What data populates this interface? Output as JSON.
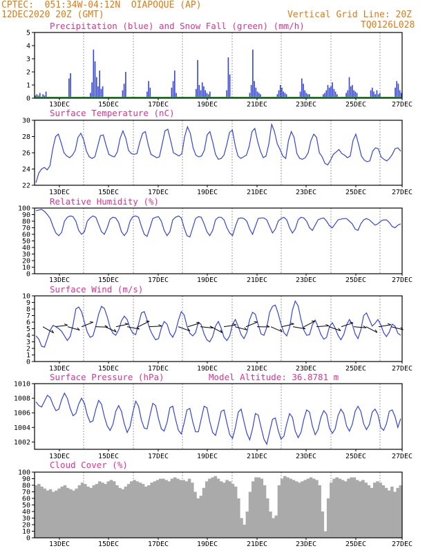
{
  "header": {
    "line1_left": "CPTEC:  051:34W-04:12N  OIAPOQUE (AP)",
    "line2_left": "12DEC2020 20Z (GMT)",
    "line2_right": "Vertical Grid Line: 20Z",
    "line3_right": "TQ0126L028"
  },
  "colors": {
    "title": "#e0308f",
    "header": "#e07a10",
    "line": "#3344dd",
    "snow": "#22aa22",
    "cloud": "#aaaaaa"
  },
  "x_ticks": [
    "13DEC",
    "15DEC",
    "17DEC",
    "19DEC",
    "21DEC",
    "23DEC",
    "25DEC",
    "27DEC"
  ],
  "chart_data": [
    {
      "type": "bar",
      "title": "Precipitation (blue) and Snow Fall (green) (mm/h)",
      "xlabel": "",
      "ylabel": "",
      "ylim": [
        0,
        5
      ],
      "yticks": [
        0,
        1,
        2,
        3,
        4,
        5
      ],
      "series": [
        {
          "name": "Precipitation",
          "values": [
            0.2,
            0.3,
            0.2,
            0.4,
            0.1,
            0.3,
            0.2,
            0.5,
            0,
            0,
            0,
            0,
            0,
            0,
            0,
            0,
            0,
            0,
            0,
            0,
            0,
            0,
            1.5,
            1.9,
            0,
            0,
            0,
            0,
            0,
            0,
            0,
            0,
            0,
            0,
            0,
            0,
            0.4,
            1.2,
            3.7,
            2.8,
            1.6,
            0.9,
            2.1,
            0.7,
            0.9,
            0,
            0,
            0,
            0,
            0,
            0,
            0,
            0,
            0,
            0,
            0,
            0,
            0.6,
            1.1,
            2.0,
            0,
            0,
            0,
            0,
            0,
            0,
            0,
            0,
            0,
            0,
            0,
            0,
            0,
            0.5,
            1.3,
            0.8,
            0,
            0,
            0,
            0,
            0,
            0,
            0,
            0,
            0,
            0,
            0,
            0,
            0,
            0.8,
            1.3,
            2.1,
            0.4,
            0,
            0,
            0,
            0,
            0,
            0,
            0,
            0,
            0,
            0,
            0,
            0,
            0.7,
            2.9,
            1.0,
            0.6,
            1.2,
            0.9,
            0.6,
            0.4,
            0.3,
            0.5,
            0,
            0,
            0,
            0,
            0,
            0,
            0,
            0,
            0,
            0,
            0.6,
            3.1,
            1.8,
            0,
            0,
            0,
            0,
            0,
            0,
            0,
            0,
            0,
            0,
            0,
            0,
            0.4,
            1.0,
            3.7,
            1.3,
            0.8,
            0.5,
            0.4,
            0.3,
            0,
            0,
            0,
            0,
            0,
            0,
            0,
            0,
            0,
            0,
            0.3,
            0.6,
            1.0,
            0.8,
            0.5,
            0.4,
            0.3,
            0,
            0,
            0,
            0,
            0,
            0,
            0,
            0,
            0.5,
            1.5,
            1.1,
            0.6,
            0.4,
            0.3,
            0.3,
            0,
            0,
            0,
            0,
            0,
            0,
            0,
            0,
            0.3,
            0.4,
            0.6,
            1.0,
            0.8,
            0.9,
            1.2,
            0.7,
            0.5,
            0.3,
            0,
            0,
            0,
            0,
            0,
            0.4,
            0.6,
            1.6,
            0.9,
            1.0,
            0.6,
            0.5,
            0.4,
            0,
            0,
            0,
            0,
            0,
            0,
            0,
            0,
            0.6,
            0.8,
            0.5,
            0.3,
            0.6,
            0.3,
            0.4,
            0,
            0,
            0,
            0,
            0,
            0,
            0,
            0,
            0,
            0.8,
            1.3,
            1.1,
            0.6,
            0.4
          ]
        },
        {
          "name": "Snow Fall",
          "values": [
            0
          ]
        }
      ]
    },
    {
      "type": "line",
      "title": "Surface Temperature (nC)",
      "xlabel": "",
      "ylabel": "",
      "ylim": [
        22,
        30
      ],
      "yticks": [
        22,
        24,
        26,
        28,
        30
      ],
      "series": [
        {
          "name": "",
          "values": [
            22.3,
            23.5,
            24.0,
            24.2,
            23.9,
            24.4,
            26.5,
            28.0,
            28.3,
            27.2,
            26.0,
            25.6,
            25.4,
            25.7,
            26.3,
            27.9,
            28.4,
            27.6,
            26.2,
            25.5,
            25.3,
            25.5,
            26.8,
            28.1,
            28.2,
            26.9,
            25.8,
            25.6,
            25.5,
            26.1,
            27.8,
            28.7,
            27.8,
            26.3,
            25.9,
            25.8,
            25.9,
            27.3,
            28.4,
            28.6,
            27.0,
            25.8,
            25.6,
            25.4,
            25.5,
            27.1,
            28.7,
            28.9,
            27.5,
            26.0,
            25.8,
            25.6,
            25.9,
            28.0,
            29.2,
            28.4,
            26.6,
            25.7,
            25.5,
            25.6,
            26.3,
            28.2,
            28.6,
            27.3,
            25.8,
            25.2,
            25.3,
            25.7,
            27.0,
            28.5,
            28.8,
            26.9,
            25.6,
            25.3,
            25.5,
            25.7,
            26.8,
            28.6,
            29.0,
            27.4,
            26.2,
            25.4,
            25.6,
            27.1,
            29.5,
            28.6,
            27.1,
            26.4,
            25.6,
            25.3,
            27.5,
            28.6,
            27.9,
            25.9,
            25.3,
            25.2,
            25.4,
            26.0,
            27.5,
            28.3,
            27.9,
            26.0,
            25.5,
            24.7,
            24.5,
            25.1,
            25.8,
            26.1,
            26.4,
            25.9,
            25.7,
            25.4,
            25.6,
            27.5,
            28.3,
            27.0,
            25.6,
            25.1,
            24.9,
            25.0,
            26.2,
            26.6,
            26.5,
            25.5,
            25.2,
            25.0,
            25.3,
            25.8,
            26.5,
            26.6,
            26.2
          ]
        }
      ]
    },
    {
      "type": "line",
      "title": "Relative Humidity (%)",
      "xlabel": "",
      "ylabel": "",
      "ylim": [
        0,
        100
      ],
      "yticks": [
        0,
        10,
        20,
        30,
        40,
        50,
        60,
        70,
        80,
        90,
        100
      ],
      "series": [
        {
          "name": "",
          "values": [
            96,
            97,
            98,
            95,
            90,
            84,
            72,
            62,
            58,
            63,
            80,
            86,
            88,
            87,
            80,
            66,
            60,
            64,
            80,
            85,
            88,
            86,
            75,
            64,
            60,
            70,
            83,
            86,
            85,
            78,
            64,
            58,
            64,
            80,
            87,
            88,
            86,
            72,
            60,
            57,
            70,
            84,
            86,
            87,
            80,
            66,
            58,
            64,
            82,
            86,
            88,
            85,
            70,
            58,
            56,
            70,
            84,
            87,
            86,
            76,
            64,
            58,
            66,
            82,
            86,
            86,
            82,
            70,
            62,
            58,
            72,
            84,
            85,
            84,
            80,
            68,
            60,
            72,
            84,
            85,
            85,
            82,
            72,
            62,
            68,
            80,
            84,
            86,
            82,
            70,
            62,
            68,
            82,
            86,
            85,
            80,
            70,
            66,
            74,
            82,
            84,
            85,
            80,
            73,
            70,
            76,
            82,
            83,
            84,
            84,
            80,
            76,
            68,
            66,
            76,
            82,
            84,
            82,
            78,
            74,
            76,
            80,
            82,
            82,
            78,
            72,
            70,
            74,
            76
          ]
        }
      ]
    },
    {
      "type": "line",
      "title": "Surface Wind (m/s)",
      "xlabel": "",
      "ylabel": "",
      "ylim": [
        0,
        10
      ],
      "yticks": [
        0,
        1,
        2,
        3,
        4,
        5,
        6,
        7,
        8,
        9,
        10
      ],
      "series": [
        {
          "name": "",
          "values": [
            3.9,
            3.4,
            2.3,
            2.2,
            3.5,
            4.8,
            5.5,
            5.3,
            5.0,
            4.6,
            3.9,
            3.2,
            3.8,
            5.6,
            8.0,
            8.3,
            7.6,
            6.0,
            4.5,
            3.7,
            3.9,
            5.4,
            7.2,
            8.4,
            8.1,
            6.8,
            5.2,
            4.3,
            4.0,
            4.8,
            6.2,
            6.9,
            6.4,
            5.1,
            4.3,
            4.1,
            5.7,
            7.4,
            7.6,
            6.3,
            4.9,
            4.0,
            3.3,
            3.5,
            5.1,
            6.1,
            5.7,
            4.3,
            3.7,
            4.6,
            6.3,
            7.6,
            7.1,
            5.4,
            4.3,
            3.9,
            4.4,
            6.0,
            5.6,
            4.2,
            3.3,
            3.0,
            3.8,
            5.4,
            6.1,
            5.1,
            3.7,
            3.2,
            3.9,
            5.7,
            6.4,
            5.3,
            4.1,
            3.5,
            4.4,
            6.4,
            7.5,
            7.2,
            5.6,
            4.2,
            4.0,
            5.2,
            7.5,
            8.4,
            8.6,
            7.3,
            5.7,
            4.4,
            3.9,
            5.2,
            7.8,
            9.2,
            8.5,
            6.4,
            4.8,
            4.0,
            4.1,
            5.6,
            6.3,
            5.3,
            4.1,
            3.4,
            3.7,
            5.3,
            5.9,
            5.1,
            4.0,
            3.3,
            4.1,
            5.6,
            6.4,
            5.7,
            4.2,
            3.5,
            4.8,
            7.0,
            7.4,
            6.4,
            5.4,
            5.8,
            6.4,
            5.6,
            4.4,
            3.8,
            4.5,
            5.7,
            5.4,
            4.3,
            4.0
          ]
        }
      ]
    },
    {
      "type": "line",
      "title": "Surface Pressure (hPa)",
      "annotation": "Model Altitude: 36.8781 m",
      "xlabel": "",
      "ylabel": "",
      "ylim": [
        1001,
        1010
      ],
      "yticks": [
        1002,
        1004,
        1006,
        1008,
        1010
      ],
      "series": [
        {
          "name": "",
          "values": [
            1007.5,
            1007.0,
            1006.8,
            1007.6,
            1008.4,
            1008.1,
            1007.1,
            1006.3,
            1006.5,
            1007.8,
            1008.7,
            1008.0,
            1006.6,
            1005.6,
            1005.9,
            1007.2,
            1008.0,
            1007.3,
            1005.7,
            1004.7,
            1004.9,
            1006.5,
            1007.7,
            1007.2,
            1005.5,
            1004.2,
            1003.6,
            1004.4,
            1006.2,
            1007.0,
            1006.2,
            1004.5,
            1003.3,
            1004.1,
            1006.1,
            1007.6,
            1006.9,
            1005.0,
            1003.9,
            1003.8,
            1005.6,
            1007.3,
            1007.0,
            1005.2,
            1003.8,
            1003.5,
            1004.7,
            1006.7,
            1006.9,
            1005.1,
            1003.6,
            1003.1,
            1004.6,
            1006.4,
            1006.6,
            1004.8,
            1003.4,
            1003.4,
            1005.2,
            1006.9,
            1006.7,
            1004.8,
            1003.3,
            1002.9,
            1004.4,
            1006.2,
            1006.4,
            1004.6,
            1003.0,
            1002.5,
            1004.0,
            1006.1,
            1006.5,
            1004.8,
            1003.2,
            1002.3,
            1003.8,
            1005.9,
            1005.7,
            1004.0,
            1002.4,
            1001.7,
            1003.4,
            1005.1,
            1005.3,
            1003.6,
            1002.4,
            1002.8,
            1004.5,
            1005.9,
            1005.4,
            1003.5,
            1002.6,
            1003.3,
            1005.1,
            1006.4,
            1006.1,
            1004.2,
            1003.0,
            1003.7,
            1005.4,
            1006.3,
            1005.8,
            1003.9,
            1003.2,
            1003.8,
            1005.6,
            1006.5,
            1005.9,
            1004.2,
            1003.5,
            1004.4,
            1006.2,
            1006.9,
            1006.2,
            1004.5,
            1003.7,
            1004.4,
            1006.1,
            1006.5,
            1005.8,
            1004.0,
            1003.6,
            1004.5,
            1006.2,
            1006.4,
            1005.5,
            1004.0,
            1005.2
          ]
        }
      ]
    },
    {
      "type": "area",
      "title": "Cloud Cover (%)",
      "xlabel": "",
      "ylabel": "",
      "ylim": [
        0,
        100
      ],
      "yticks": [
        0,
        10,
        20,
        30,
        40,
        50,
        60,
        70,
        80,
        90,
        100
      ],
      "series": [
        {
          "name": "",
          "values": [
            80,
            82,
            78,
            75,
            72,
            74,
            70,
            72,
            75,
            78,
            80,
            76,
            74,
            72,
            75,
            80,
            84,
            82,
            78,
            76,
            80,
            82,
            86,
            84,
            82,
            86,
            88,
            86,
            80,
            76,
            74,
            78,
            82,
            86,
            88,
            86,
            84,
            82,
            78,
            80,
            84,
            86,
            88,
            90,
            90,
            88,
            86,
            90,
            92,
            90,
            88,
            88,
            86,
            90,
            84,
            70,
            60,
            64,
            76,
            86,
            90,
            92,
            94,
            90,
            86,
            84,
            88,
            86,
            82,
            78,
            60,
            30,
            20,
            40,
            70,
            86,
            92,
            92,
            90,
            80,
            60,
            40,
            30,
            34,
            80,
            90,
            94,
            92,
            90,
            88,
            86,
            84,
            86,
            88,
            90,
            92,
            90,
            88,
            80,
            40,
            10,
            60,
            84,
            90,
            92,
            90,
            88,
            86,
            90,
            92,
            92,
            88,
            86,
            88,
            84,
            80,
            76,
            84,
            86,
            84,
            80,
            76,
            72,
            78,
            70,
            76,
            80
          ]
        }
      ]
    }
  ]
}
